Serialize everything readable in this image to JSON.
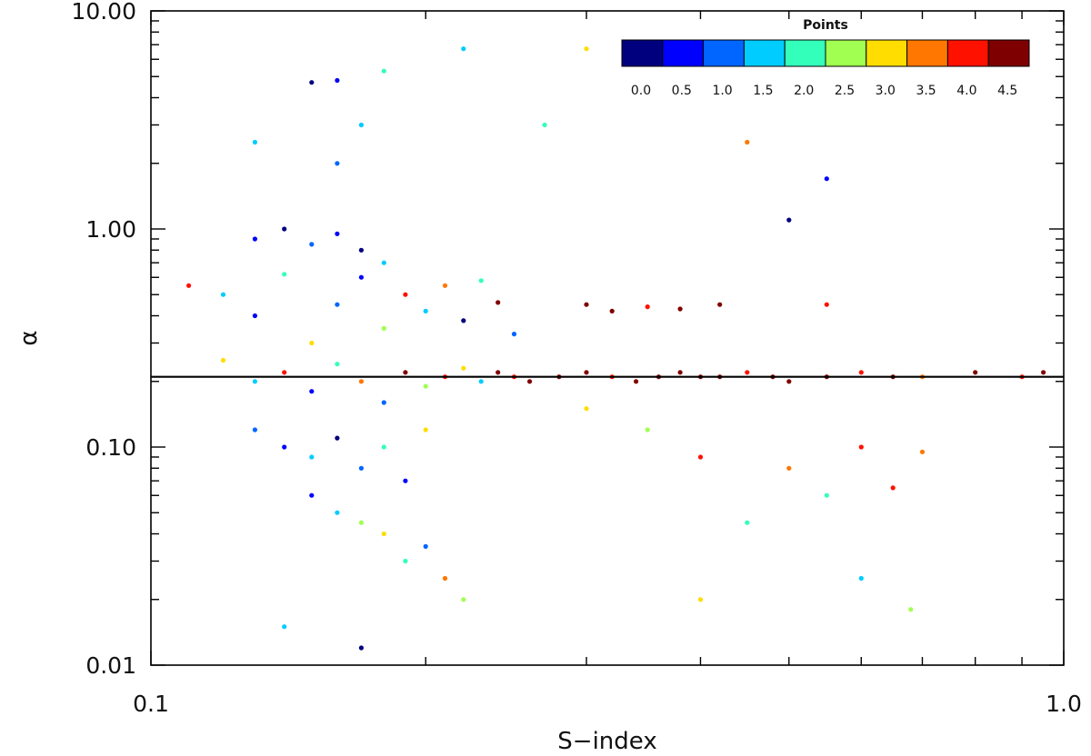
{
  "chart_data": {
    "type": "scatter",
    "xlabel": "S−index",
    "ylabel": "α",
    "x_scale": "log",
    "y_scale": "log",
    "xlim": [
      0.1,
      1.0
    ],
    "ylim": [
      0.01,
      10.0
    ],
    "x_ticks": [
      {
        "value": 0.1,
        "label": "0.1"
      },
      {
        "value": 1.0,
        "label": "1.0"
      }
    ],
    "y_ticks": [
      {
        "value": 0.01,
        "label": "0.01"
      },
      {
        "value": 0.1,
        "label": "0.10"
      },
      {
        "value": 1.0,
        "label": "1.00"
      },
      {
        "value": 10.0,
        "label": "10.00"
      }
    ],
    "reference_line": {
      "y": 0.21,
      "color": "#000000"
    },
    "colorbar": {
      "title": "Points",
      "position": "top-right",
      "bins": [
        {
          "label": "0.0",
          "color": "#00007f"
        },
        {
          "label": "0.5",
          "color": "#0000ff"
        },
        {
          "label": "1.0",
          "color": "#0066ff"
        },
        {
          "label": "1.5",
          "color": "#00ccff"
        },
        {
          "label": "2.0",
          "color": "#33ffbb"
        },
        {
          "label": "2.5",
          "color": "#a0ff50"
        },
        {
          "label": "3.0",
          "color": "#ffdd00"
        },
        {
          "label": "3.5",
          "color": "#ff7700"
        },
        {
          "label": "4.0",
          "color": "#ff1100"
        },
        {
          "label": "4.5",
          "color": "#7f0000"
        }
      ]
    },
    "series": [
      {
        "color_by": "Points",
        "points": [
          [
            0.11,
            0.55,
            4.0
          ],
          [
            0.12,
            0.5,
            1.5
          ],
          [
            0.13,
            0.4,
            0.5
          ],
          [
            0.14,
            0.62,
            2.0
          ],
          [
            0.15,
            0.3,
            3.0
          ],
          [
            0.16,
            0.45,
            1.0
          ],
          [
            0.17,
            0.6,
            0.5
          ],
          [
            0.18,
            0.35,
            2.5
          ],
          [
            0.19,
            0.5,
            4.0
          ],
          [
            0.2,
            0.42,
            1.5
          ],
          [
            0.21,
            0.55,
            3.5
          ],
          [
            0.22,
            0.38,
            0.0
          ],
          [
            0.23,
            0.58,
            2.0
          ],
          [
            0.24,
            0.46,
            4.5
          ],
          [
            0.25,
            0.33,
            1.0
          ],
          [
            0.12,
            0.25,
            3.0
          ],
          [
            0.13,
            0.2,
            1.5
          ],
          [
            0.14,
            0.22,
            4.0
          ],
          [
            0.15,
            0.18,
            0.5
          ],
          [
            0.16,
            0.24,
            2.0
          ],
          [
            0.17,
            0.2,
            3.5
          ],
          [
            0.18,
            0.16,
            1.0
          ],
          [
            0.19,
            0.22,
            4.5
          ],
          [
            0.2,
            0.19,
            2.5
          ],
          [
            0.21,
            0.21,
            4.0
          ],
          [
            0.22,
            0.23,
            3.0
          ],
          [
            0.23,
            0.2,
            1.5
          ],
          [
            0.24,
            0.22,
            4.5
          ],
          [
            0.25,
            0.21,
            4.0
          ],
          [
            0.26,
            0.2,
            4.5
          ],
          [
            0.28,
            0.21,
            4.5
          ],
          [
            0.3,
            0.22,
            4.5
          ],
          [
            0.32,
            0.21,
            4.0
          ],
          [
            0.34,
            0.2,
            4.5
          ],
          [
            0.36,
            0.21,
            4.5
          ],
          [
            0.38,
            0.22,
            4.5
          ],
          [
            0.4,
            0.21,
            4.5
          ],
          [
            0.42,
            0.21,
            4.5
          ],
          [
            0.45,
            0.22,
            4.0
          ],
          [
            0.48,
            0.21,
            4.5
          ],
          [
            0.5,
            0.2,
            4.5
          ],
          [
            0.55,
            0.21,
            4.5
          ],
          [
            0.6,
            0.22,
            4.0
          ],
          [
            0.65,
            0.21,
            4.5
          ],
          [
            0.7,
            0.21,
            3.5
          ],
          [
            0.8,
            0.22,
            4.5
          ],
          [
            0.9,
            0.21,
            4.0
          ],
          [
            0.95,
            0.22,
            4.5
          ],
          [
            0.13,
            0.12,
            1.0
          ],
          [
            0.14,
            0.1,
            0.5
          ],
          [
            0.15,
            0.09,
            1.5
          ],
          [
            0.16,
            0.11,
            0.0
          ],
          [
            0.17,
            0.08,
            1.0
          ],
          [
            0.18,
            0.1,
            2.0
          ],
          [
            0.19,
            0.07,
            0.5
          ],
          [
            0.2,
            0.12,
            3.0
          ],
          [
            0.15,
            0.06,
            0.5
          ],
          [
            0.16,
            0.05,
            1.5
          ],
          [
            0.17,
            0.045,
            2.5
          ],
          [
            0.18,
            0.04,
            3.0
          ],
          [
            0.19,
            0.03,
            2.0
          ],
          [
            0.2,
            0.035,
            1.0
          ],
          [
            0.21,
            0.025,
            3.5
          ],
          [
            0.22,
            0.02,
            2.5
          ],
          [
            0.14,
            0.015,
            1.5
          ],
          [
            0.17,
            0.012,
            0.0
          ],
          [
            0.13,
            0.9,
            0.5
          ],
          [
            0.14,
            1.0,
            0.0
          ],
          [
            0.15,
            0.85,
            1.0
          ],
          [
            0.16,
            0.95,
            0.5
          ],
          [
            0.17,
            0.8,
            0.0
          ],
          [
            0.18,
            0.7,
            1.5
          ],
          [
            0.15,
            4.7,
            0.0
          ],
          [
            0.16,
            4.8,
            0.5
          ],
          [
            0.17,
            3.0,
            1.5
          ],
          [
            0.18,
            5.3,
            2.0
          ],
          [
            0.16,
            2.0,
            1.0
          ],
          [
            0.13,
            2.5,
            1.5
          ],
          [
            0.22,
            6.7,
            1.5
          ],
          [
            0.3,
            6.7,
            3.0
          ],
          [
            0.27,
            3.0,
            2.0
          ],
          [
            0.45,
            2.5,
            3.5
          ],
          [
            0.55,
            1.7,
            0.5
          ],
          [
            0.5,
            1.1,
            0.0
          ],
          [
            0.3,
            0.45,
            4.5
          ],
          [
            0.32,
            0.42,
            4.5
          ],
          [
            0.35,
            0.44,
            4.0
          ],
          [
            0.38,
            0.43,
            4.5
          ],
          [
            0.42,
            0.45,
            4.5
          ],
          [
            0.55,
            0.45,
            4.0
          ],
          [
            0.3,
            0.15,
            3.0
          ],
          [
            0.35,
            0.12,
            2.5
          ],
          [
            0.4,
            0.09,
            4.0
          ],
          [
            0.5,
            0.08,
            3.5
          ],
          [
            0.6,
            0.1,
            4.0
          ],
          [
            0.7,
            0.095,
            3.5
          ],
          [
            0.55,
            0.06,
            2.0
          ],
          [
            0.65,
            0.065,
            4.0
          ],
          [
            0.45,
            0.045,
            2.0
          ],
          [
            0.6,
            0.025,
            1.5
          ],
          [
            0.68,
            0.018,
            2.5
          ],
          [
            0.4,
            0.02,
            3.0
          ]
        ]
      }
    ]
  }
}
